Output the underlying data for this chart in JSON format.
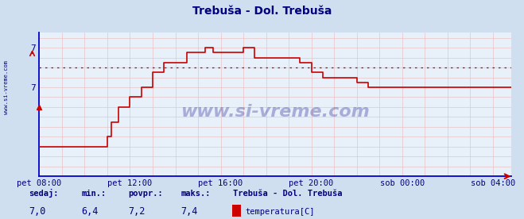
{
  "title": "Trebuša - Dol. Trebuša",
  "bg_color": "#d0dff0",
  "plot_bg": "#e8f0fa",
  "line_color": "#cc0000",
  "avg_color": "#cc0000",
  "avg_value": 7.2,
  "label_color": "#000080",
  "xlim": [
    0,
    20.8
  ],
  "ylim_min": 6.1,
  "ylim_max": 7.55,
  "ytick_values": [
    7.0,
    7.4
  ],
  "ytick_labels": [
    "7",
    "7"
  ],
  "xtick_positions": [
    0,
    4,
    8,
    12,
    16,
    20
  ],
  "xtick_labels": [
    "pet 08:00",
    "pet 12:00",
    "pet 16:00",
    "pet 20:00",
    "sob 00:00",
    "sob 04:00"
  ],
  "watermark": "www.si-vreme.com",
  "side_text": "www.si-vreme.com",
  "sedaj": "7,0",
  "min_val": "6,4",
  "povpr": "7,2",
  "maks": "7,4",
  "legend_station": "Trebuša - Dol. Trebuša",
  "legend_label": "temperatura[C]",
  "legend_color": "#cc0000",
  "step_x": [
    0.0,
    3.0,
    3.0,
    3.17,
    3.17,
    3.5,
    3.5,
    4.0,
    4.0,
    4.5,
    4.5,
    5.0,
    5.0,
    5.5,
    5.5,
    6.5,
    6.5,
    7.33,
    7.33,
    7.67,
    7.67,
    9.0,
    9.0,
    9.5,
    9.5,
    11.5,
    11.5,
    12.0,
    12.0,
    12.5,
    12.5,
    14.0,
    14.0,
    14.5,
    14.5,
    16.0,
    16.0,
    20.8
  ],
  "step_y": [
    6.4,
    6.4,
    6.5,
    6.5,
    6.65,
    6.65,
    6.8,
    6.8,
    6.9,
    6.9,
    7.0,
    7.0,
    7.15,
    7.15,
    7.25,
    7.25,
    7.35,
    7.35,
    7.4,
    7.4,
    7.35,
    7.35,
    7.4,
    7.4,
    7.3,
    7.3,
    7.25,
    7.25,
    7.15,
    7.15,
    7.1,
    7.1,
    7.05,
    7.05,
    7.0,
    7.0,
    7.0,
    7.0
  ]
}
